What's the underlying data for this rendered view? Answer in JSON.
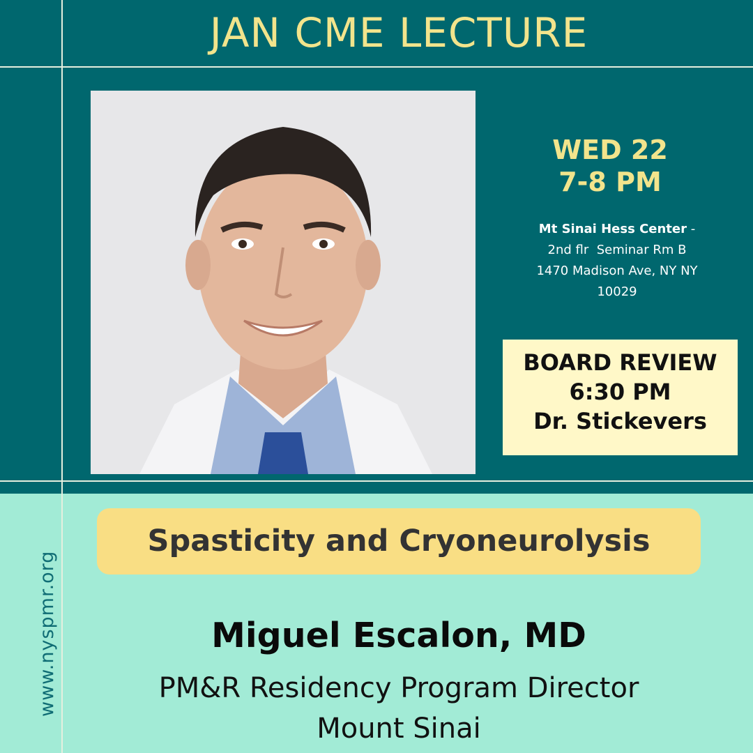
{
  "title": "JAN CME LECTURE",
  "event": {
    "day": "WED 22",
    "time": "7-8 PM",
    "venue_name": "Mt Sinai Hess Center",
    "venue_sep": " -",
    "venue_line2": "2nd flr  Seminar Rm B",
    "venue_line3": "1470 Madison Ave, NY NY",
    "venue_line4": "10029"
  },
  "board_review": {
    "line1": "BOARD REVIEW",
    "line2": "6:30 PM",
    "line3": "Dr. Stickevers"
  },
  "topic": "Spasticity and Cryoneurolysis",
  "speaker": {
    "name": "Miguel Escalon, MD",
    "role": "PM&R Residency Program Director",
    "institution": "Mount Sinai"
  },
  "website": "www.nyspmr.org",
  "colors": {
    "teal": "#00676e",
    "mint": "#a2ebd6",
    "yellow_text": "#f2e48c",
    "topic_bg": "#f9de84",
    "board_bg": "#fff8c8"
  }
}
